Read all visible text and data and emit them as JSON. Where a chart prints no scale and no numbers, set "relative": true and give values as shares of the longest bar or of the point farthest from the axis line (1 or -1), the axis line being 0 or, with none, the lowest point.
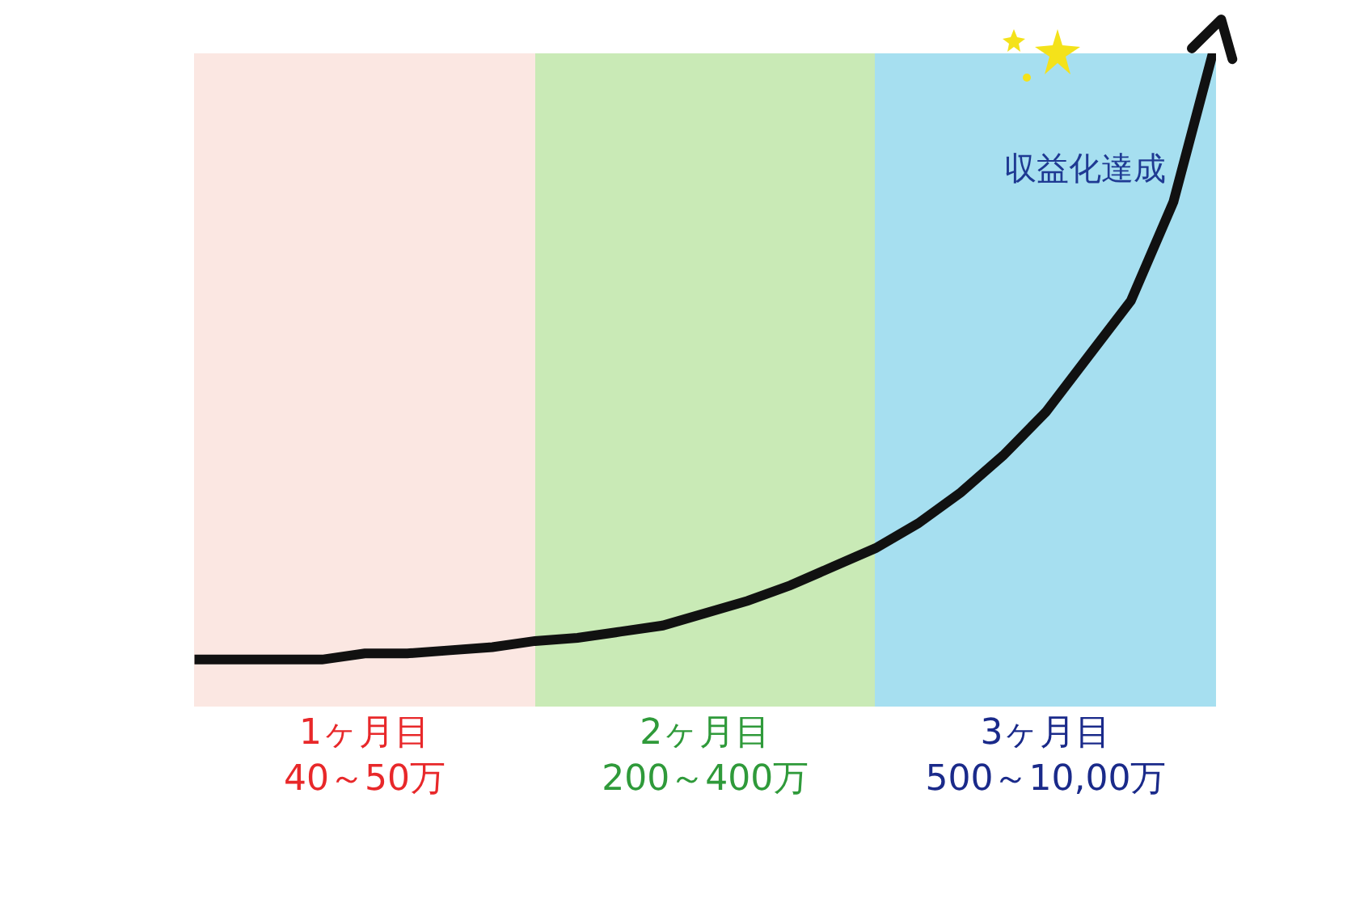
{
  "chart_data": {
    "type": "line",
    "relative": true,
    "tick_labels": "x",
    "categories": [
      null,
      null,
      null,
      null,
      "1ヶ月目\n40～50万",
      null,
      null,
      null,
      null,
      null,
      null,
      null,
      "2ヶ月目\n200～400万",
      null,
      null,
      null,
      null,
      null,
      null,
      null,
      "3ヶ月目\n500～10,00万",
      null,
      null,
      null,
      null
    ],
    "series": [
      {
        "color": "#111111",
        "values": [
          0,
          0,
          0,
          0,
          0.01,
          0.01,
          0.015,
          0.02,
          0.03,
          0.035,
          0.045,
          0.055,
          0.075,
          0.095,
          0.12,
          0.15,
          0.18,
          0.22,
          0.27,
          0.33,
          0.4,
          0.49,
          0.58,
          0.74,
          1.0
        ]
      }
    ],
    "annotations": [
      "収益化達成"
    ]
  }
}
